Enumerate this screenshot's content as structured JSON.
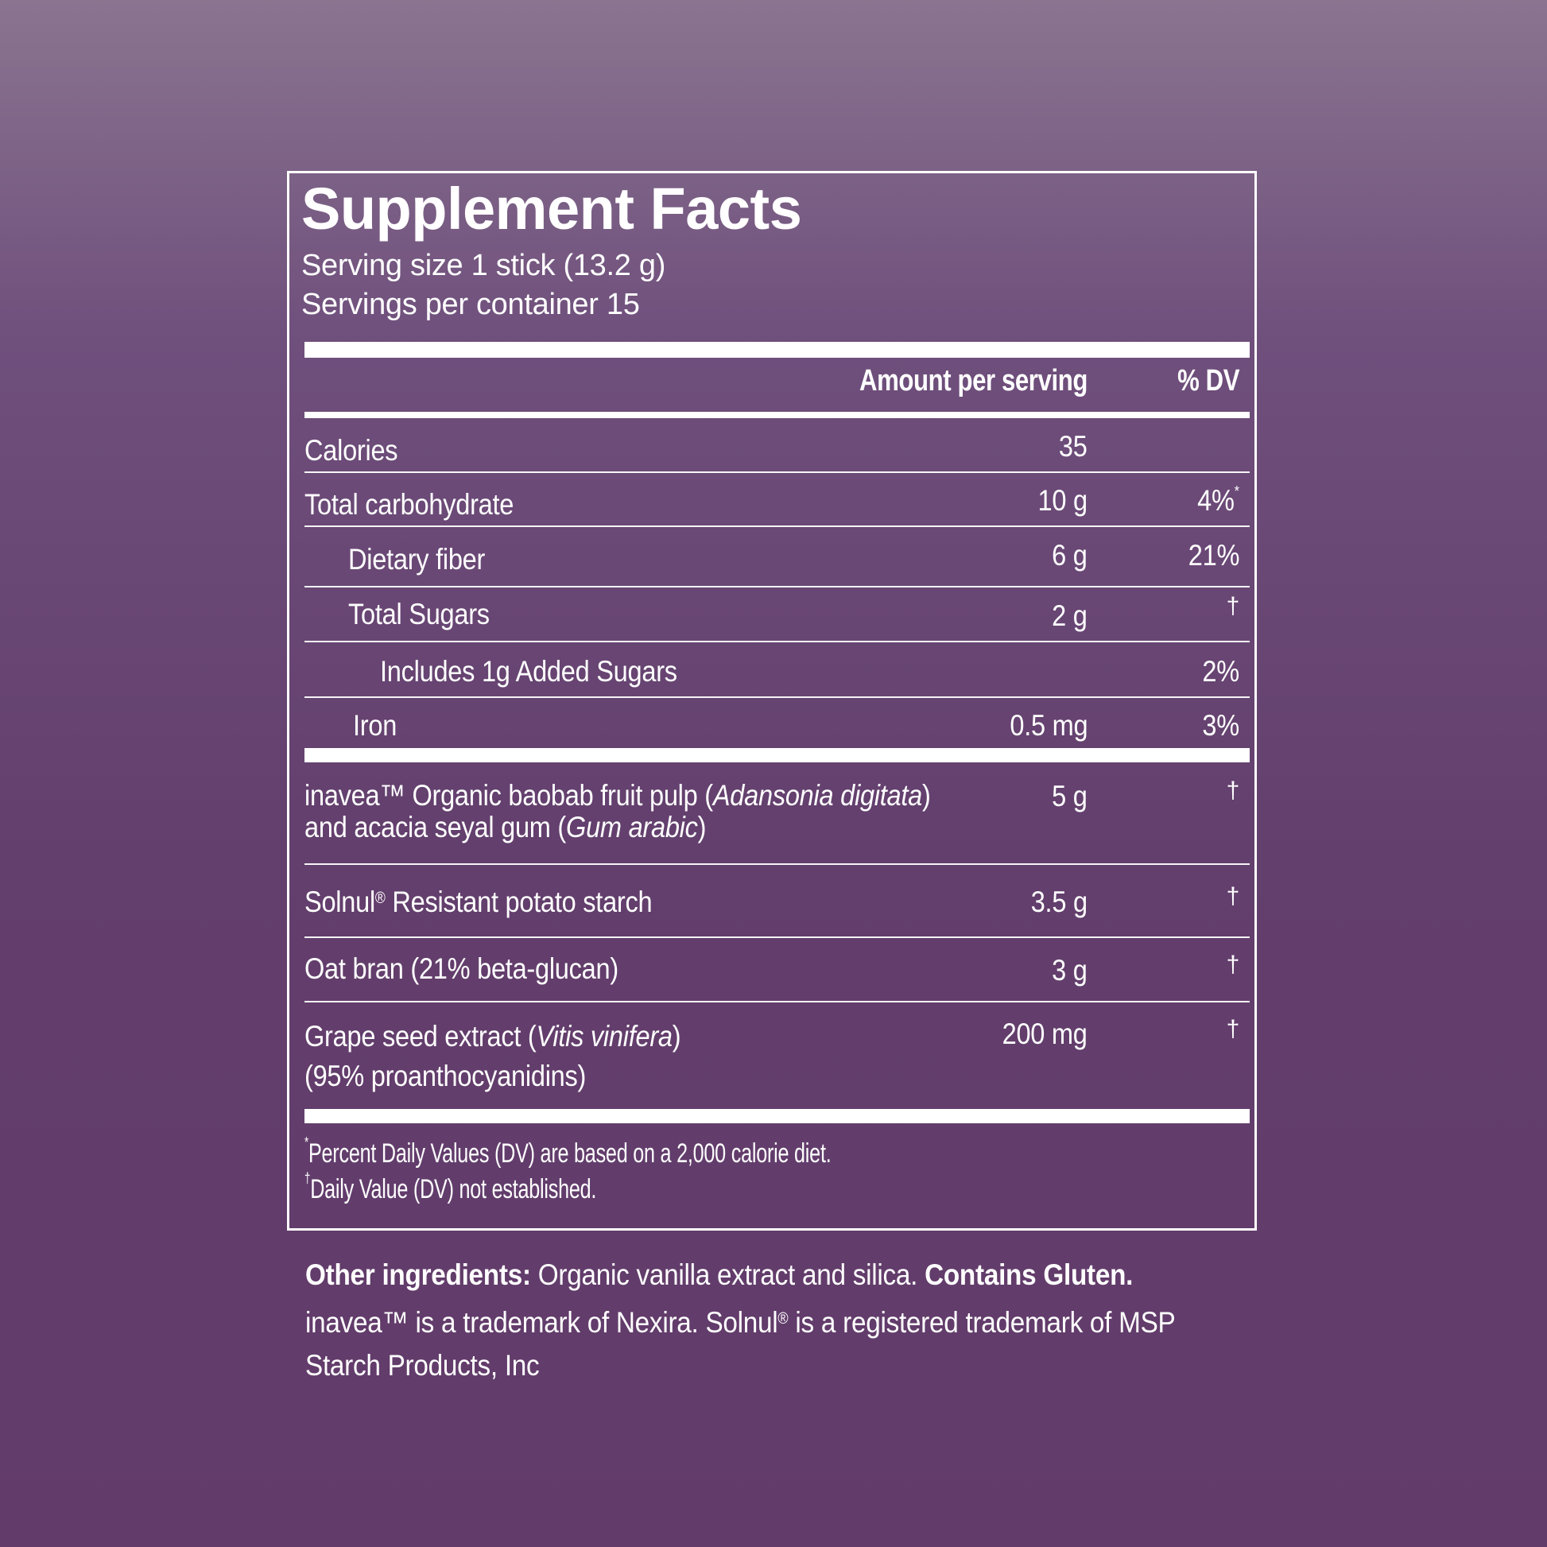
{
  "panel": {
    "title": "Supplement Facts",
    "serving_size": "Serving size 1 stick (13.2 g)",
    "servings_per_container": "Servings per container 15",
    "headers": {
      "amount": "Amount per serving",
      "dv": "% DV"
    },
    "nutrients": [
      {
        "label": "Calories",
        "amount": "35",
        "dv": ""
      },
      {
        "label": "Total carbohydrate",
        "amount": "10 g",
        "dv": "4%",
        "dv_mark": "*"
      },
      {
        "label": "Dietary fiber",
        "amount": "6 g",
        "dv": "21%"
      },
      {
        "label": "Total Sugars",
        "amount": "2 g",
        "dv": "†"
      },
      {
        "label": "Includes 1g Added Sugars",
        "amount": "",
        "dv": "2%"
      },
      {
        "label": "Iron",
        "amount": "0.5 mg",
        "dv": "3%"
      }
    ],
    "ingredients": [
      {
        "line1_a": "inavea™ Organic baobab fruit pulp (",
        "line1_italic": "Adansonia digitata",
        "line1_b": ")",
        "line2_a": "and acacia seyal gum (",
        "line2_italic": "Gum arabic",
        "line2_b": ")",
        "amount": "5 g",
        "dv": "†"
      },
      {
        "label_a": "Solnul",
        "label_reg": "®",
        "label_b": " Resistant potato starch",
        "amount": "3.5 g",
        "dv": "†"
      },
      {
        "label": "Oat bran (21% beta-glucan)",
        "amount": "3 g",
        "dv": "†"
      },
      {
        "line1_a": "Grape seed extract (",
        "line1_italic": "Vitis vinifera",
        "line1_b": ")",
        "line2": "(95% proanthocyanidins)",
        "amount": "200 mg",
        "dv": "†"
      }
    ],
    "footnotes": [
      {
        "mark": "*",
        "text": "Percent Daily Values (DV) are based on a 2,000 calorie diet."
      },
      {
        "mark": "†",
        "text": "Daily Value (DV) not established."
      }
    ]
  },
  "other": {
    "ingredients_label": "Other ingredients:",
    "ingredients_text": " Organic vanilla extract and silica. ",
    "contains": "Contains Gluten.",
    "trademark_a": "inavea™ is a trademark of Nexira. Solnul",
    "trademark_reg": "®",
    "trademark_b": " is a registered trademark of MSP",
    "trademark_line2": "Starch Products, Inc"
  }
}
